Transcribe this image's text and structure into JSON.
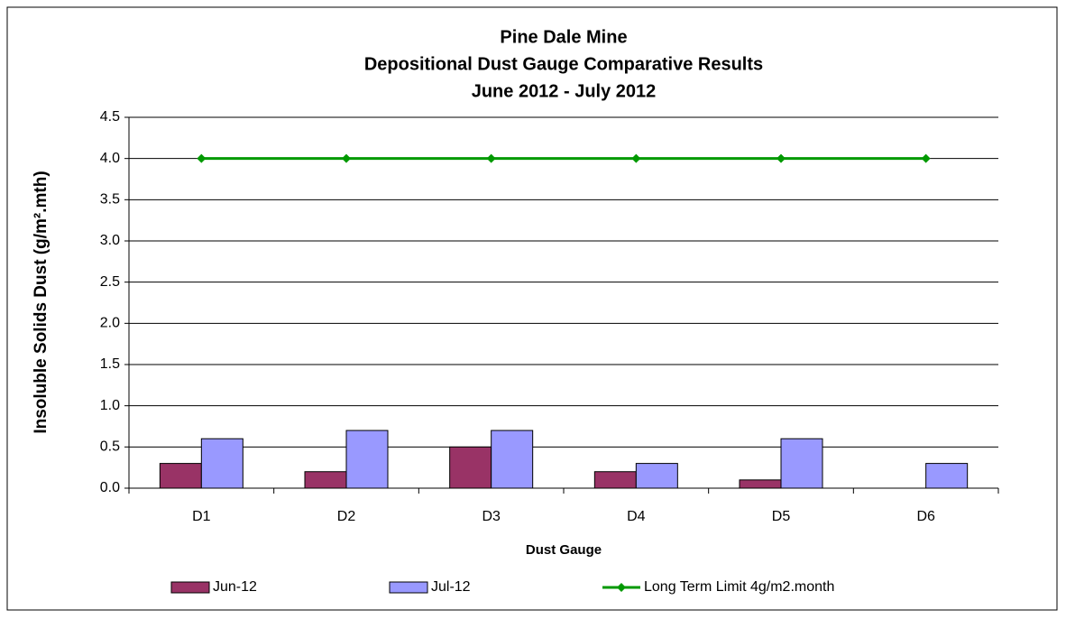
{
  "chart_data": {
    "type": "bar",
    "title": [
      "Pine Dale Mine",
      "Depositional Dust Gauge Comparative Results",
      "June 2012 - July 2012"
    ],
    "y_label": "Insoluble Solids Dust (g/m².mth)",
    "x_label": "Dust Gauge",
    "categories": [
      "D1",
      "D2",
      "D3",
      "D4",
      "D5",
      "D6"
    ],
    "series": [
      {
        "name": "Jun-12",
        "type": "bar",
        "color": "#993366",
        "values": [
          0.3,
          0.2,
          0.5,
          0.2,
          0.1,
          0
        ]
      },
      {
        "name": "Jul-12",
        "type": "bar",
        "color": "#9999ff",
        "values": [
          0.6,
          0.7,
          0.7,
          0.3,
          0.6,
          0.3
        ]
      },
      {
        "name": "Long Term Limit 4g/m2.month",
        "type": "line",
        "color": "#009900",
        "values": [
          4,
          4,
          4,
          4,
          4,
          4
        ]
      }
    ],
    "ylim": [
      0,
      4.5
    ],
    "yticks": [
      {
        "value": 0,
        "label": "0.0"
      },
      0.5,
      {
        "value": 1,
        "label": "1.0"
      },
      1.5,
      {
        "value": 2,
        "label": "2.0"
      },
      2.5,
      {
        "value": 3,
        "label": "3.0"
      },
      3.5,
      {
        "value": 4,
        "label": "4.0"
      },
      4.5
    ],
    "grid": true,
    "legend": "bottom"
  }
}
